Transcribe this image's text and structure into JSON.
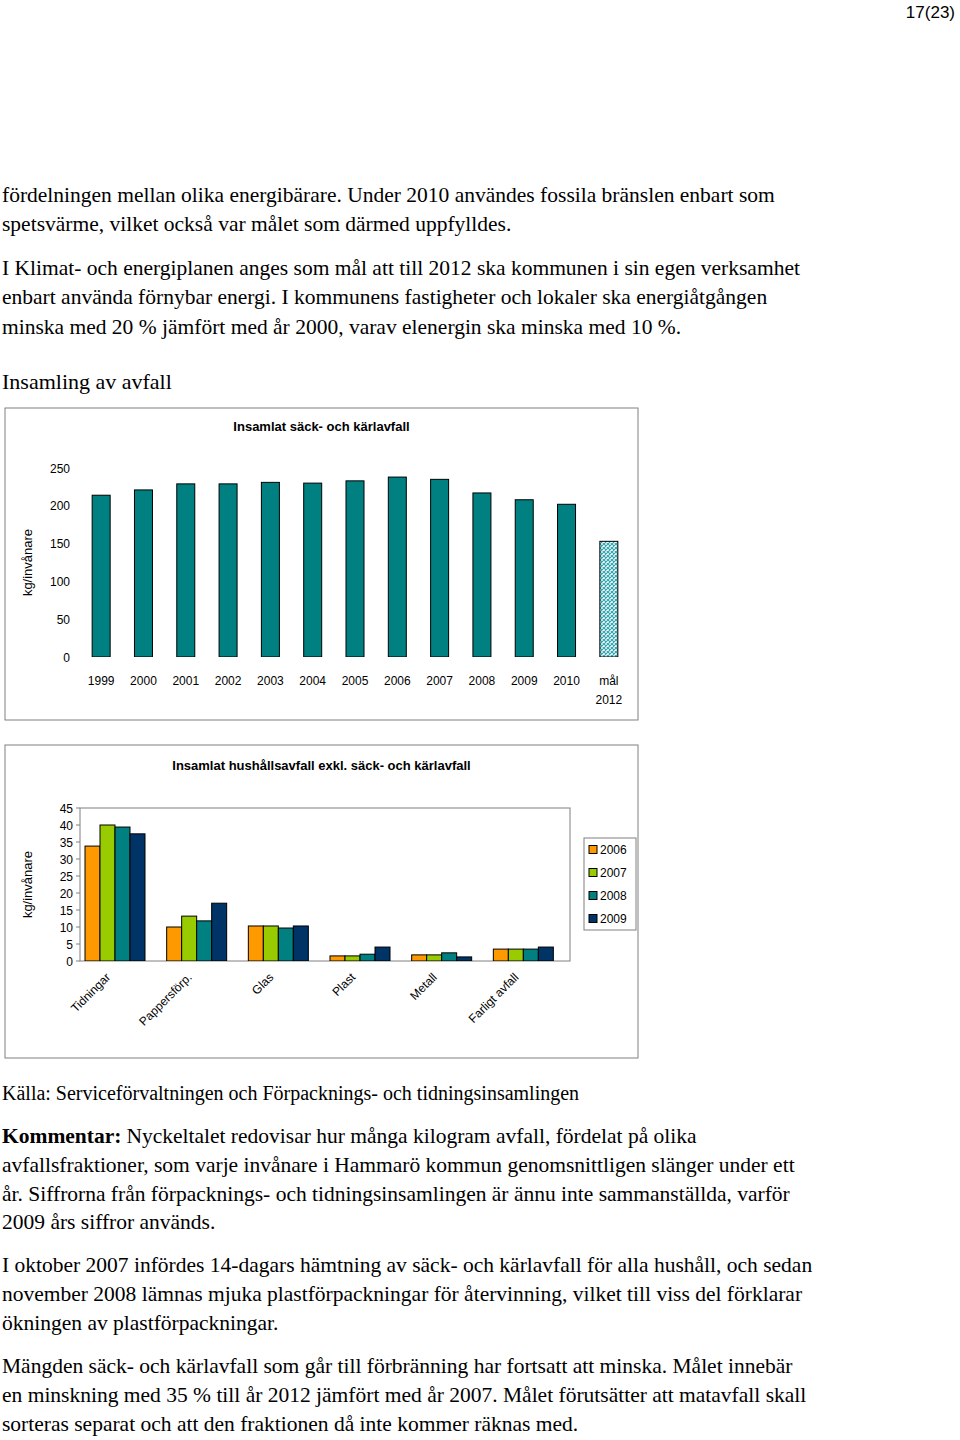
{
  "page_number": "17(23)",
  "paragraphs": [
    {
      "lines": [
        "fördelningen mellan olika energibärare. Under 2010 användes fossila bränslen enbart som",
        "spetsvärme, vilket också var målet som därmed uppfylldes."
      ]
    },
    {
      "lines": [
        "I Klimat- och energiplanen anges som mål att till 2012 ska kommunen i sin egen verksamhet",
        "enbart använda förnybar energi. I kommunens fastigheter och lokaler ska energiåtgången",
        "minska med 20 % jämfört med år 2000, varav elenergin ska minska med 10 %."
      ]
    }
  ],
  "heading": "Insamling av avfall",
  "chart_data": [
    {
      "type": "bar",
      "title": "Insamlat säck- och kärlavfall",
      "ylabel": "kg/invånare",
      "categories": [
        "1999",
        "2000",
        "2001",
        "2002",
        "2003",
        "2004",
        "2005",
        "2006",
        "2007",
        "2008",
        "2009",
        "2010",
        "mål 2012"
      ],
      "values": [
        214,
        221,
        229,
        229,
        231,
        230,
        233,
        238,
        235,
        217,
        208,
        202,
        153
      ],
      "colors": [
        "#008080",
        "#008080",
        "#008080",
        "#008080",
        "#008080",
        "#008080",
        "#008080",
        "#008080",
        "#008080",
        "#008080",
        "#008080",
        "#008080",
        "#33a6b0"
      ],
      "ylim": [
        0,
        250
      ],
      "yticks": [
        0,
        50,
        100,
        150,
        200,
        250
      ],
      "grid": false
    },
    {
      "type": "bar",
      "title": "Insamlat hushållsavfall exkl. säck- och kärlavfall",
      "ylabel": "kg/invånare",
      "categories": [
        "Tidningar",
        "Pappersförp.",
        "Glas",
        "Plast",
        "Metall",
        "Farligt avfall"
      ],
      "series": [
        {
          "name": "2006",
          "color": "#ff9900",
          "values": [
            33.8,
            10,
            10.3,
            1.5,
            1.8,
            3.5
          ]
        },
        {
          "name": "2007",
          "color": "#99cc00",
          "values": [
            40,
            13.2,
            10.3,
            1.5,
            1.8,
            3.5
          ]
        },
        {
          "name": "2008",
          "color": "#008080",
          "values": [
            39.4,
            11.8,
            9.7,
            2,
            2.4,
            3.5
          ]
        },
        {
          "name": "2009",
          "color": "#003366",
          "values": [
            37.4,
            17,
            10.3,
            4.1,
            1.2,
            4.1
          ]
        }
      ],
      "ylim": [
        0,
        45
      ],
      "yticks": [
        0,
        5,
        10,
        15,
        20,
        25,
        30,
        35,
        40,
        45
      ],
      "grid": false,
      "legend": "right"
    }
  ],
  "source": "Källa: Serviceförvaltningen och Förpacknings- och tidningsinsamlingen",
  "comments": [
    {
      "label": "Kommentar:",
      "lines": [
        "Nyckeltalet redovisar hur många kilogram avfall, fördelat på olika",
        "avfallsfraktioner, som varje invånare i Hammarö kommun genomsnittligen slänger under ett",
        "år. Siffrorna från förpacknings- och tidningsinsamlingen är ännu inte sammanställda, varför",
        "2009 års siffror används."
      ]
    },
    {
      "lines": [
        "I oktober 2007 infördes 14-dagars hämtning av säck- och kärlavfall för alla hushåll, och sedan",
        "november 2008 lämnas mjuka plastförpackningar för återvinning, vilket till viss del förklarar",
        "ökningen av plastförpackningar."
      ]
    },
    {
      "lines": [
        "Mängden säck- och kärlavfall som går till förbränning har fortsatt att minska. Målet innebär",
        "en minskning med 35 % till år 2012 jämfört med år 2007. Målet förutsätter att matavfall skall",
        "sorteras separat och att den fraktionen då inte kommer räknas med."
      ]
    }
  ]
}
